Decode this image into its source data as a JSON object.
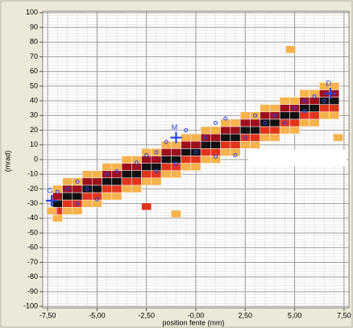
{
  "chart_data": {
    "type": "heatmap",
    "x_label": "position fente (mm)",
    "y_label": "(mrad)",
    "xlim": [
      -7.75,
      7.75
    ],
    "ylim": [
      -101,
      101
    ],
    "xticks": [
      {
        "value": -7.5,
        "label": "-7,50"
      },
      {
        "value": -5,
        "label": "-5,00"
      },
      {
        "value": -2.5,
        "label": "-2,50"
      },
      {
        "value": 0,
        "label": "-0,00"
      },
      {
        "value": 2.5,
        "label": "2,50"
      },
      {
        "value": 5,
        "label": "5,00"
      },
      {
        "value": 7.5,
        "label": "7,50"
      }
    ],
    "yticks": [
      -100,
      -90,
      -80,
      -70,
      -60,
      -50,
      -40,
      -30,
      -20,
      -10,
      0,
      10,
      20,
      30,
      40,
      50,
      60,
      70,
      80,
      90,
      100
    ],
    "grid": true,
    "minor_grid": true,
    "cell_width": 0.5,
    "cell_height": 5,
    "level_colors": [
      "#f6b24c",
      "#e2341c",
      "#9e0f1c",
      "#111111"
    ],
    "cells": [
      [
        -7,
        -40,
        1
      ],
      [
        -7,
        -35,
        2
      ],
      [
        -7,
        -30,
        4
      ],
      [
        -7,
        -25,
        3
      ],
      [
        -7,
        -20,
        1
      ],
      [
        -6.5,
        -35,
        1
      ],
      [
        -6.5,
        -30,
        2
      ],
      [
        -6.5,
        -25,
        4
      ],
      [
        -6.5,
        -20,
        3
      ],
      [
        -6.5,
        -15,
        1
      ],
      [
        -6,
        -35,
        1
      ],
      [
        -6,
        -30,
        2
      ],
      [
        -6,
        -25,
        4
      ],
      [
        -6,
        -20,
        3
      ],
      [
        -6,
        -15,
        1
      ],
      [
        -5.5,
        -30,
        1
      ],
      [
        -5.5,
        -25,
        2
      ],
      [
        -5.5,
        -20,
        4
      ],
      [
        -5.5,
        -15,
        3
      ],
      [
        -5.5,
        -10,
        1
      ],
      [
        -5,
        -30,
        1
      ],
      [
        -5,
        -25,
        2
      ],
      [
        -5,
        -20,
        4
      ],
      [
        -5,
        -15,
        3
      ],
      [
        -5,
        -10,
        1
      ],
      [
        -4.5,
        -25,
        1
      ],
      [
        -4.5,
        -20,
        2
      ],
      [
        -4.5,
        -15,
        4
      ],
      [
        -4.5,
        -10,
        3
      ],
      [
        -4.5,
        -5,
        1
      ],
      [
        -4,
        -25,
        1
      ],
      [
        -4,
        -20,
        2
      ],
      [
        -4,
        -15,
        4
      ],
      [
        -4,
        -10,
        3
      ],
      [
        -4,
        -5,
        1
      ],
      [
        -3.5,
        -20,
        1
      ],
      [
        -3.5,
        -15,
        2
      ],
      [
        -3.5,
        -10,
        4
      ],
      [
        -3.5,
        -5,
        3
      ],
      [
        -3.5,
        0,
        1
      ],
      [
        -3,
        -20,
        1
      ],
      [
        -3,
        -15,
        2
      ],
      [
        -3,
        -10,
        4
      ],
      [
        -3,
        -5,
        3
      ],
      [
        -3,
        0,
        1
      ],
      [
        -2.5,
        -15,
        1
      ],
      [
        -2.5,
        -10,
        2
      ],
      [
        -2.5,
        -5,
        4
      ],
      [
        -2.5,
        0,
        3
      ],
      [
        -2.5,
        5,
        1
      ],
      [
        -2,
        -15,
        1
      ],
      [
        -2,
        -10,
        2
      ],
      [
        -2,
        -5,
        4
      ],
      [
        -2,
        0,
        3
      ],
      [
        -2,
        5,
        1
      ],
      [
        -1.5,
        -10,
        1
      ],
      [
        -1.5,
        -5,
        2
      ],
      [
        -1.5,
        0,
        4
      ],
      [
        -1.5,
        5,
        3
      ],
      [
        -1.5,
        10,
        1
      ],
      [
        -1,
        -10,
        1
      ],
      [
        -1,
        -5,
        2
      ],
      [
        -1,
        0,
        4
      ],
      [
        -1,
        5,
        3
      ],
      [
        -1,
        10,
        1
      ],
      [
        -0.5,
        -5,
        1
      ],
      [
        -0.5,
        0,
        2
      ],
      [
        -0.5,
        5,
        4
      ],
      [
        -0.5,
        10,
        3
      ],
      [
        -0.5,
        15,
        1
      ],
      [
        0,
        -5,
        1
      ],
      [
        0,
        0,
        2
      ],
      [
        0,
        5,
        4
      ],
      [
        0,
        10,
        3
      ],
      [
        0,
        15,
        1
      ],
      [
        0.5,
        0,
        1
      ],
      [
        0.5,
        5,
        2
      ],
      [
        0.5,
        10,
        4
      ],
      [
        0.5,
        15,
        3
      ],
      [
        0.5,
        20,
        1
      ],
      [
        1,
        0,
        1
      ],
      [
        1,
        5,
        2
      ],
      [
        1,
        10,
        4
      ],
      [
        1,
        15,
        3
      ],
      [
        1,
        20,
        1
      ],
      [
        1.5,
        5,
        1
      ],
      [
        1.5,
        10,
        2
      ],
      [
        1.5,
        15,
        4
      ],
      [
        1.5,
        20,
        3
      ],
      [
        1.5,
        25,
        1
      ],
      [
        2,
        5,
        1
      ],
      [
        2,
        10,
        2
      ],
      [
        2,
        15,
        4
      ],
      [
        2,
        20,
        3
      ],
      [
        2,
        25,
        1
      ],
      [
        2.5,
        10,
        1
      ],
      [
        2.5,
        15,
        2
      ],
      [
        2.5,
        20,
        4
      ],
      [
        2.5,
        25,
        3
      ],
      [
        2.5,
        30,
        1
      ],
      [
        3,
        10,
        1
      ],
      [
        3,
        15,
        2
      ],
      [
        3,
        20,
        4
      ],
      [
        3,
        25,
        3
      ],
      [
        3,
        30,
        1
      ],
      [
        3.5,
        15,
        1
      ],
      [
        3.5,
        20,
        2
      ],
      [
        3.5,
        25,
        4
      ],
      [
        3.5,
        30,
        3
      ],
      [
        3.5,
        35,
        1
      ],
      [
        4,
        15,
        1
      ],
      [
        4,
        20,
        2
      ],
      [
        4,
        25,
        4
      ],
      [
        4,
        30,
        3
      ],
      [
        4,
        35,
        1
      ],
      [
        4.5,
        20,
        1
      ],
      [
        4.5,
        25,
        2
      ],
      [
        4.5,
        30,
        4
      ],
      [
        4.5,
        35,
        3
      ],
      [
        4.5,
        40,
        1
      ],
      [
        5,
        20,
        1
      ],
      [
        5,
        25,
        2
      ],
      [
        5,
        30,
        4
      ],
      [
        5,
        35,
        3
      ],
      [
        5,
        40,
        1
      ],
      [
        5.5,
        25,
        1
      ],
      [
        5.5,
        30,
        2
      ],
      [
        5.5,
        35,
        4
      ],
      [
        5.5,
        40,
        3
      ],
      [
        5.5,
        45,
        1
      ],
      [
        6,
        25,
        1
      ],
      [
        6,
        30,
        2
      ],
      [
        6,
        35,
        4
      ],
      [
        6,
        40,
        3
      ],
      [
        6,
        45,
        1
      ],
      [
        6.5,
        30,
        1
      ],
      [
        6.5,
        35,
        2
      ],
      [
        6.5,
        40,
        4
      ],
      [
        6.5,
        45,
        3
      ],
      [
        6.5,
        50,
        1
      ],
      [
        7,
        30,
        1
      ],
      [
        7,
        35,
        2
      ],
      [
        7,
        40,
        4
      ],
      [
        7,
        45,
        3
      ],
      [
        7,
        50,
        1
      ],
      [
        4.8,
        75,
        1
      ],
      [
        7.2,
        15,
        1
      ],
      [
        -2.5,
        -32,
        2
      ],
      [
        -1,
        -37,
        1
      ],
      [
        -7.3,
        -35,
        1
      ]
    ],
    "points_color": "#2b3fe0",
    "points": {
      "x": [
        -7,
        -6.5,
        -6,
        -5.5,
        -4.5,
        -4,
        -3,
        -2.5,
        -2,
        -1.5,
        -0.5,
        0,
        0.5,
        1,
        1.5,
        2,
        2.5,
        3,
        3.5,
        4,
        4.5,
        5,
        5.5,
        5.5,
        6,
        6.5,
        -2,
        -5,
        -6,
        -1,
        1
      ],
      "y": [
        -22,
        -20,
        -15,
        -20,
        -10,
        -8,
        -2,
        3,
        5,
        12,
        20,
        5,
        15,
        25,
        28,
        3,
        15,
        30,
        25,
        30,
        25,
        35,
        40,
        33,
        43,
        40,
        -8,
        -27,
        -30,
        -3,
        2
      ]
    },
    "markers": [
      {
        "label": "G",
        "x": -7.3,
        "y": -28
      },
      {
        "label": "M",
        "x": -1,
        "y": 15
      },
      {
        "label": "D",
        "x": 6.8,
        "y": 45
      }
    ]
  }
}
